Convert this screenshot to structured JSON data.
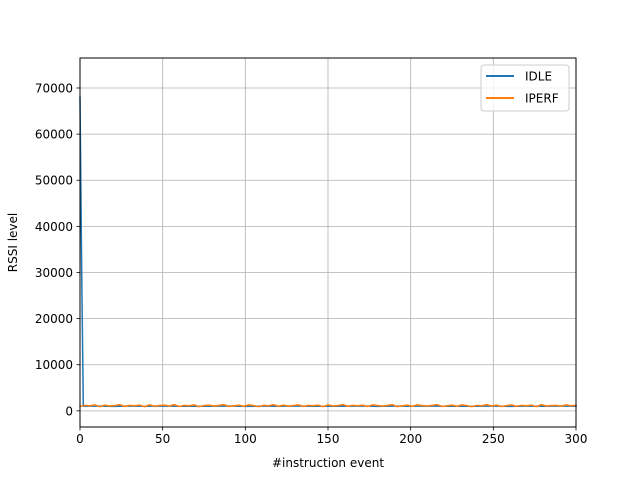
{
  "chart_data": {
    "type": "line",
    "xlabel": "#instruction event",
    "ylabel": "RSSI level",
    "xlim": [
      0,
      300
    ],
    "ylim": [
      -3500,
      76500
    ],
    "xticks": [
      0,
      50,
      100,
      150,
      200,
      250,
      300
    ],
    "yticks": [
      0,
      10000,
      20000,
      30000,
      40000,
      50000,
      60000,
      70000
    ],
    "grid": true,
    "legend_position": "top-right",
    "series": [
      {
        "name": "IDLE",
        "color": "#1f77b4",
        "x": [
          0,
          1,
          2,
          10,
          20,
          30,
          40,
          50,
          60,
          70,
          80,
          90,
          100,
          110,
          120,
          130,
          140,
          150,
          160,
          170,
          180,
          190,
          200,
          210,
          220,
          230,
          240,
          250,
          260,
          270,
          280,
          290,
          300
        ],
        "values": [
          68000,
          31000,
          1000,
          1050,
          980,
          1020,
          1000,
          1050,
          990,
          1010,
          1000,
          1040,
          980,
          1020,
          1000,
          1050,
          990,
          1010,
          1000,
          1040,
          980,
          1020,
          1000,
          1050,
          990,
          1010,
          1000,
          1040,
          980,
          1020,
          1000,
          1050,
          1000
        ]
      },
      {
        "name": "IPERF",
        "color": "#ff7f0e",
        "x": [
          0,
          3,
          6,
          9,
          12,
          15,
          18,
          21,
          24,
          27,
          30,
          33,
          36,
          39,
          42,
          45,
          48,
          51,
          54,
          57,
          60,
          63,
          66,
          69,
          72,
          75,
          78,
          81,
          84,
          87,
          90,
          93,
          96,
          99,
          102,
          105,
          108,
          111,
          114,
          117,
          120,
          123,
          126,
          129,
          132,
          135,
          138,
          141,
          144,
          147,
          150,
          153,
          156,
          159,
          162,
          165,
          168,
          171,
          174,
          177,
          180,
          183,
          186,
          189,
          192,
          195,
          198,
          201,
          204,
          207,
          210,
          213,
          216,
          219,
          222,
          225,
          228,
          231,
          234,
          237,
          240,
          243,
          246,
          249,
          252,
          255,
          258,
          261,
          264,
          267,
          270,
          273,
          276,
          279,
          282,
          285,
          288,
          291,
          294,
          297,
          300
        ],
        "values": [
          1000,
          1200,
          1100,
          1300,
          900,
          1250,
          1050,
          1150,
          1350,
          950,
          1200,
          1100,
          1250,
          900,
          1300,
          1000,
          1150,
          1250,
          1050,
          1350,
          950,
          1200,
          1100,
          1300,
          900,
          1150,
          1250,
          1050,
          1200,
          1350,
          950,
          1100,
          1250,
          1000,
          1300,
          1150,
          900,
          1200,
          1100,
          1350,
          1000,
          1250,
          1050,
          1150,
          1300,
          950,
          1200,
          1100,
          1250,
          900,
          1300,
          1050,
          1150,
          1350,
          1000,
          1200,
          1100,
          1250,
          950,
          1300,
          1150,
          1050,
          1200,
          1350,
          900,
          1100,
          1250,
          1000,
          1300,
          1150,
          1050,
          1200,
          1350,
          950,
          1100,
          1250,
          1000,
          1300,
          1150,
          900,
          1200,
          1100,
          1350,
          1050,
          1250,
          950,
          1150,
          1300,
          1000,
          1200,
          1100,
          1250,
          900,
          1350,
          1050,
          1150,
          1200,
          1000,
          1300,
          1100,
          1200
        ]
      }
    ]
  }
}
